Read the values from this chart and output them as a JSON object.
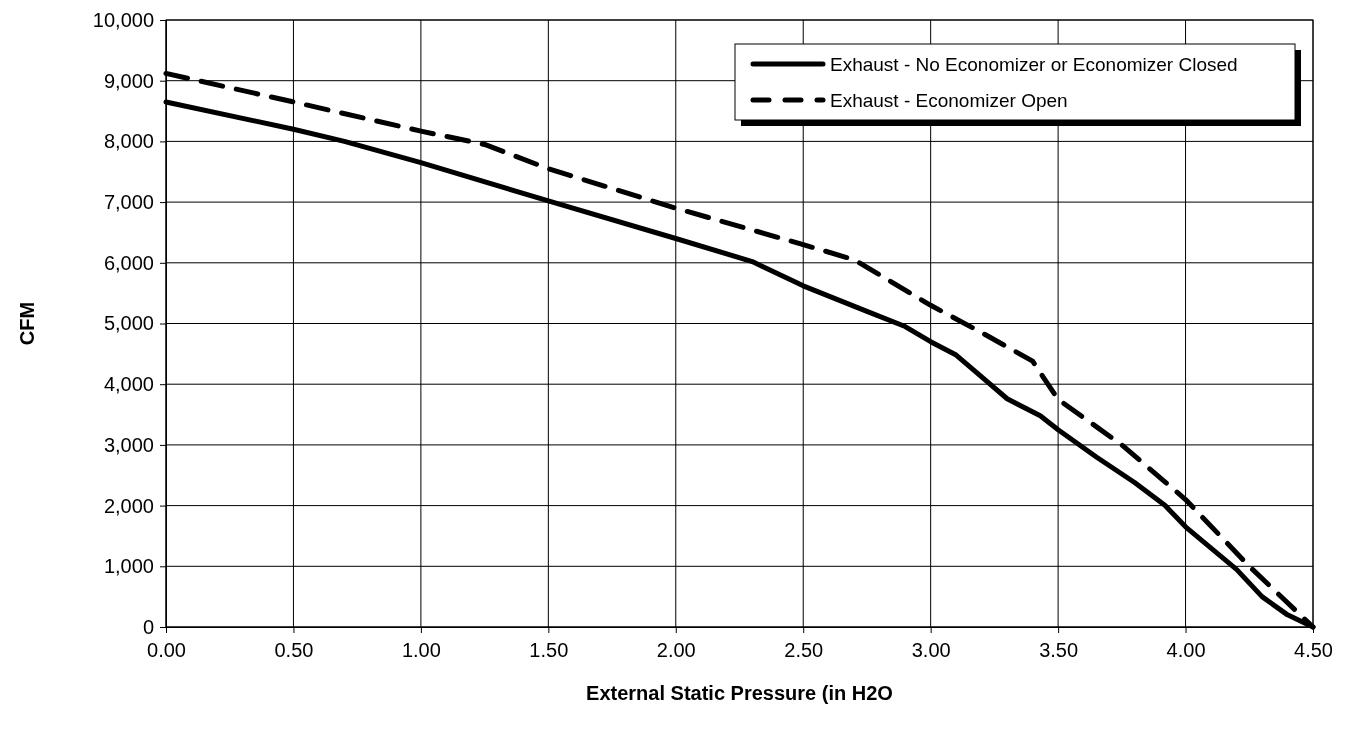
{
  "chart_data": {
    "type": "line",
    "xlabel": "External Static Pressure (in H2O",
    "ylabel": "CFM",
    "xlim": [
      0,
      4.5
    ],
    "xticks": [
      {
        "value": 0,
        "label": "0.00"
      },
      {
        "value": 0.5,
        "label": "0.50"
      },
      {
        "value": 1,
        "label": "1.00"
      },
      {
        "value": 1.5,
        "label": "1.50"
      },
      {
        "value": 2,
        "label": "2.00"
      },
      {
        "value": 2.5,
        "label": "2.50"
      },
      {
        "value": 3,
        "label": "3.00"
      },
      {
        "value": 3.5,
        "label": "3.50"
      },
      {
        "value": 4,
        "label": "4.00"
      },
      {
        "value": 4.5,
        "label": "4.50"
      }
    ],
    "ylim": [
      0,
      10000
    ],
    "yticks": [
      0,
      {
        "value": 1000,
        "label": "1,000"
      },
      {
        "value": 2000,
        "label": "2,000"
      },
      {
        "value": 3000,
        "label": "3,000"
      },
      {
        "value": 4000,
        "label": "4,000"
      },
      {
        "value": 5000,
        "label": "5,000"
      },
      {
        "value": 6000,
        "label": "6,000"
      },
      {
        "value": 7000,
        "label": "7,000"
      },
      {
        "value": 8000,
        "label": "8,000"
      },
      {
        "value": 9000,
        "label": "9,000"
      },
      {
        "value": 10000,
        "label": "10,000"
      }
    ],
    "grid": true,
    "legend": "top right",
    "marker": "none",
    "series": [
      {
        "name": "Exhaust - No Economizer or Economizer Closed",
        "color": "#000000",
        "line_style": "solid",
        "x": [
          0,
          0.5,
          0.7,
          1,
          1.5,
          2,
          2.3,
          2.5,
          2.75,
          2.9,
          3,
          3.1,
          3.2,
          3.3,
          3.43,
          3.5,
          3.65,
          3.8,
          3.92,
          4,
          4.1,
          4.2,
          4.3,
          4.4,
          4.5
        ],
        "values": [
          8650,
          8200,
          8000,
          7650,
          7020,
          6400,
          6020,
          5620,
          5200,
          4950,
          4700,
          4480,
          4120,
          3760,
          3480,
          3250,
          2800,
          2380,
          2000,
          1650,
          1300,
          950,
          500,
          200,
          0
        ]
      },
      {
        "name": "Exhaust - Economizer Open",
        "color": "#000000",
        "line_style": "dashed",
        "x": [
          0,
          0.5,
          1,
          1.25,
          1.5,
          2,
          2.5,
          2.7,
          3,
          3.2,
          3.4,
          3.5,
          3.75,
          4,
          4.25,
          4.5
        ],
        "values": [
          9120,
          8650,
          8170,
          7950,
          7550,
          6900,
          6300,
          6050,
          5300,
          4850,
          4380,
          3750,
          3000,
          2100,
          1000,
          0
        ]
      }
    ]
  }
}
